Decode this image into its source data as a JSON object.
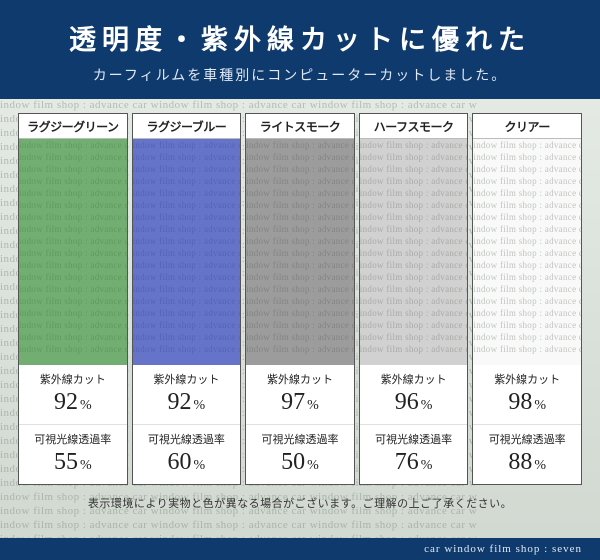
{
  "header": {
    "title": "透明度・紫外線カットに優れた",
    "subtitle": "カーフィルムを車種別にコンピューターカットしました。"
  },
  "bg_tile_text": "indow film shop : advance car window film shop : advance car window film shop : advance car w",
  "swatches": [
    {
      "name": "ラグジーグリーン",
      "overlay_color": "rgba(60,142,58,0.72)",
      "uv_cut": "92",
      "light": "55"
    },
    {
      "name": "ラグジーブルー",
      "overlay_color": "rgba(42,62,180,0.72)",
      "uv_cut": "92",
      "light": "60"
    },
    {
      "name": "ライトスモーク",
      "overlay_color": "rgba(95,95,95,0.62)",
      "uv_cut": "97",
      "light": "50"
    },
    {
      "name": "ハーフスモーク",
      "overlay_color": "rgba(140,140,140,0.40)",
      "uv_cut": "96",
      "light": "76"
    },
    {
      "name": "クリアー",
      "overlay_color": "rgba(220,220,220,0.18)",
      "uv_cut": "98",
      "light": "88"
    }
  ],
  "labels": {
    "uv_cut": "紫外線カット",
    "light_trans": "可視光線透過率",
    "percent": "%"
  },
  "disclaimer": "表示環境により実物と色が異なる場合がございます。ご理解の上ご了承ください。",
  "footer": "car window film shop : seven",
  "bg_tile_rows": 40,
  "swatch_tile_rows": 18
}
